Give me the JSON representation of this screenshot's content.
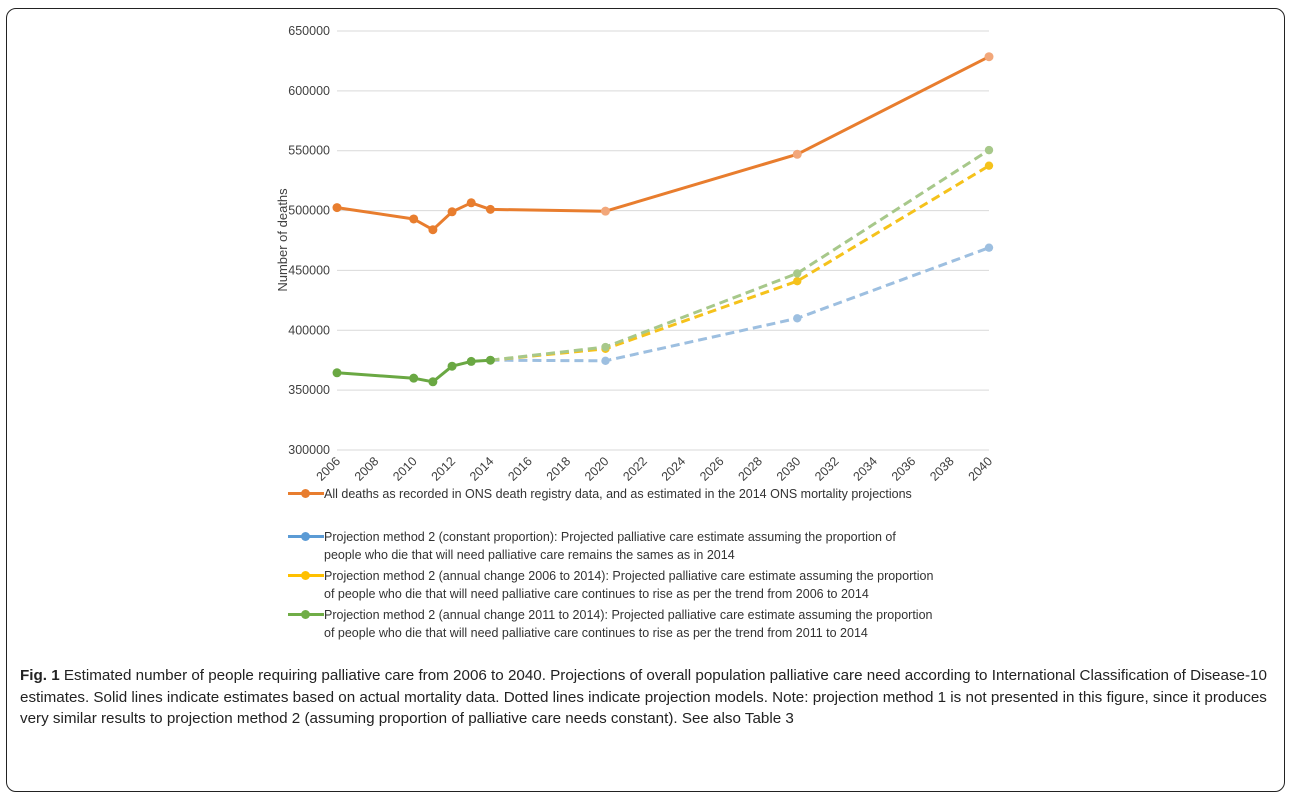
{
  "colors": {
    "all_deaths": "#E87D2E",
    "constant": "#9DBFE0",
    "annual_2006_2014": "#F5C21B",
    "annual_2011_2014": "#6AA843",
    "annual_2011_2014_dashed": "#A7C88A",
    "gridline": "#D9D9D9"
  },
  "chart_data": {
    "type": "line",
    "ylabel": "Number of deaths",
    "xlabel": "",
    "ylim": [
      300000,
      650000
    ],
    "xlim": [
      2006,
      2040
    ],
    "y_ticks": [
      "300000",
      "350000",
      "400000",
      "450000",
      "500000",
      "550000",
      "600000",
      "650000"
    ],
    "x_ticks": [
      "2006",
      "2008",
      "2010",
      "2012",
      "2014",
      "2016",
      "2018",
      "2020",
      "2022",
      "2024",
      "2026",
      "2028",
      "2030",
      "2032",
      "2034",
      "2036",
      "2038",
      "2040"
    ],
    "grid": "horizontal",
    "series": [
      {
        "key": "all_deaths",
        "name": "All deaths as recorded in ONS death registry data, and as estimated in the 2014 ONS mortality projections",
        "color": "#E87D2E",
        "solid": [
          [
            2006,
            502500
          ],
          [
            2010,
            493000
          ],
          [
            2011,
            484000
          ],
          [
            2012,
            499000
          ],
          [
            2013,
            506500
          ],
          [
            2014,
            501000
          ],
          [
            2020,
            499500
          ],
          [
            2030,
            547000
          ],
          [
            2040,
            628500
          ]
        ],
        "dashed": []
      },
      {
        "key": "constant",
        "name": "Projection method 2 (constant proportion): Projected palliative care estimate assuming the proportion of people who die that will need palliative care remains the sames as in 2014",
        "color": "#9DBFE0",
        "solid": [],
        "dashed": [
          [
            2014,
            375000
          ],
          [
            2020,
            374500
          ],
          [
            2030,
            410000
          ],
          [
            2040,
            469000
          ]
        ]
      },
      {
        "key": "annual_2006_2014",
        "name": "Projection method 2 (annual change 2006 to 2014): Projected palliative care estimate assuming the proportion of people who die that will need palliative care continues to rise as per the trend from 2006 to 2014",
        "color": "#F5C21B",
        "solid": [],
        "dashed": [
          [
            2014,
            375000
          ],
          [
            2020,
            384500
          ],
          [
            2030,
            441000
          ],
          [
            2040,
            537500
          ]
        ]
      },
      {
        "key": "annual_2011_2014",
        "name": "Projection method 2 (annual change 2011 to 2014): Projected palliative care estimate assuming the proportion of people who die that will need palliative care continues to rise as per the trend from 2011 to 2014",
        "color": "#6AA843",
        "dashed_color": "#A7C88A",
        "solid": [
          [
            2006,
            364500
          ],
          [
            2010,
            360000
          ],
          [
            2011,
            357000
          ],
          [
            2012,
            370000
          ],
          [
            2013,
            374000
          ],
          [
            2014,
            375000
          ]
        ],
        "dashed": [
          [
            2014,
            375000
          ],
          [
            2020,
            386000
          ],
          [
            2030,
            447500
          ],
          [
            2040,
            550500
          ]
        ]
      }
    ]
  },
  "legend": {
    "all_deaths": [
      "All deaths as recorded in ONS death registry data, and as estimated in the 2014 ONS mortality projections"
    ],
    "constant": [
      "Projection method 2 (constant proportion): Projected palliative care estimate assuming the proportion of",
      "people who die that will need palliative care remains the sames as in 2014"
    ],
    "annual_2006_2014": [
      "Projection method 2 (annual change 2006 to 2014): Projected palliative care estimate assuming the proportion",
      "of people who die that will need palliative care continues to rise as per the trend from 2006 to 2014"
    ],
    "annual_2011_2014": [
      "Projection method 2 (annual change 2011 to 2014): Projected palliative care estimate assuming the proportion",
      "of people who die that will need palliative care continues to rise as per the trend from 2011 to 2014"
    ],
    "swatch_colors": {
      "all_deaths": "#E87D2E",
      "constant": "#5B9BD5",
      "annual_2006_2014": "#FFC000",
      "annual_2011_2014": "#70AD47"
    }
  },
  "caption": {
    "label": "Fig. 1",
    "text": " Estimated number of people requiring palliative care from 2006 to 2040. Projections of overall population palliative care need according to International Classification of Disease-10 estimates. Solid lines indicate estimates based on actual mortality data. Dotted lines indicate projection models. Note: projection method 1 is not presented in this figure, since it produces very similar results to projection method 2 (assuming proportion of palliative care needs constant). See also Table 3"
  }
}
